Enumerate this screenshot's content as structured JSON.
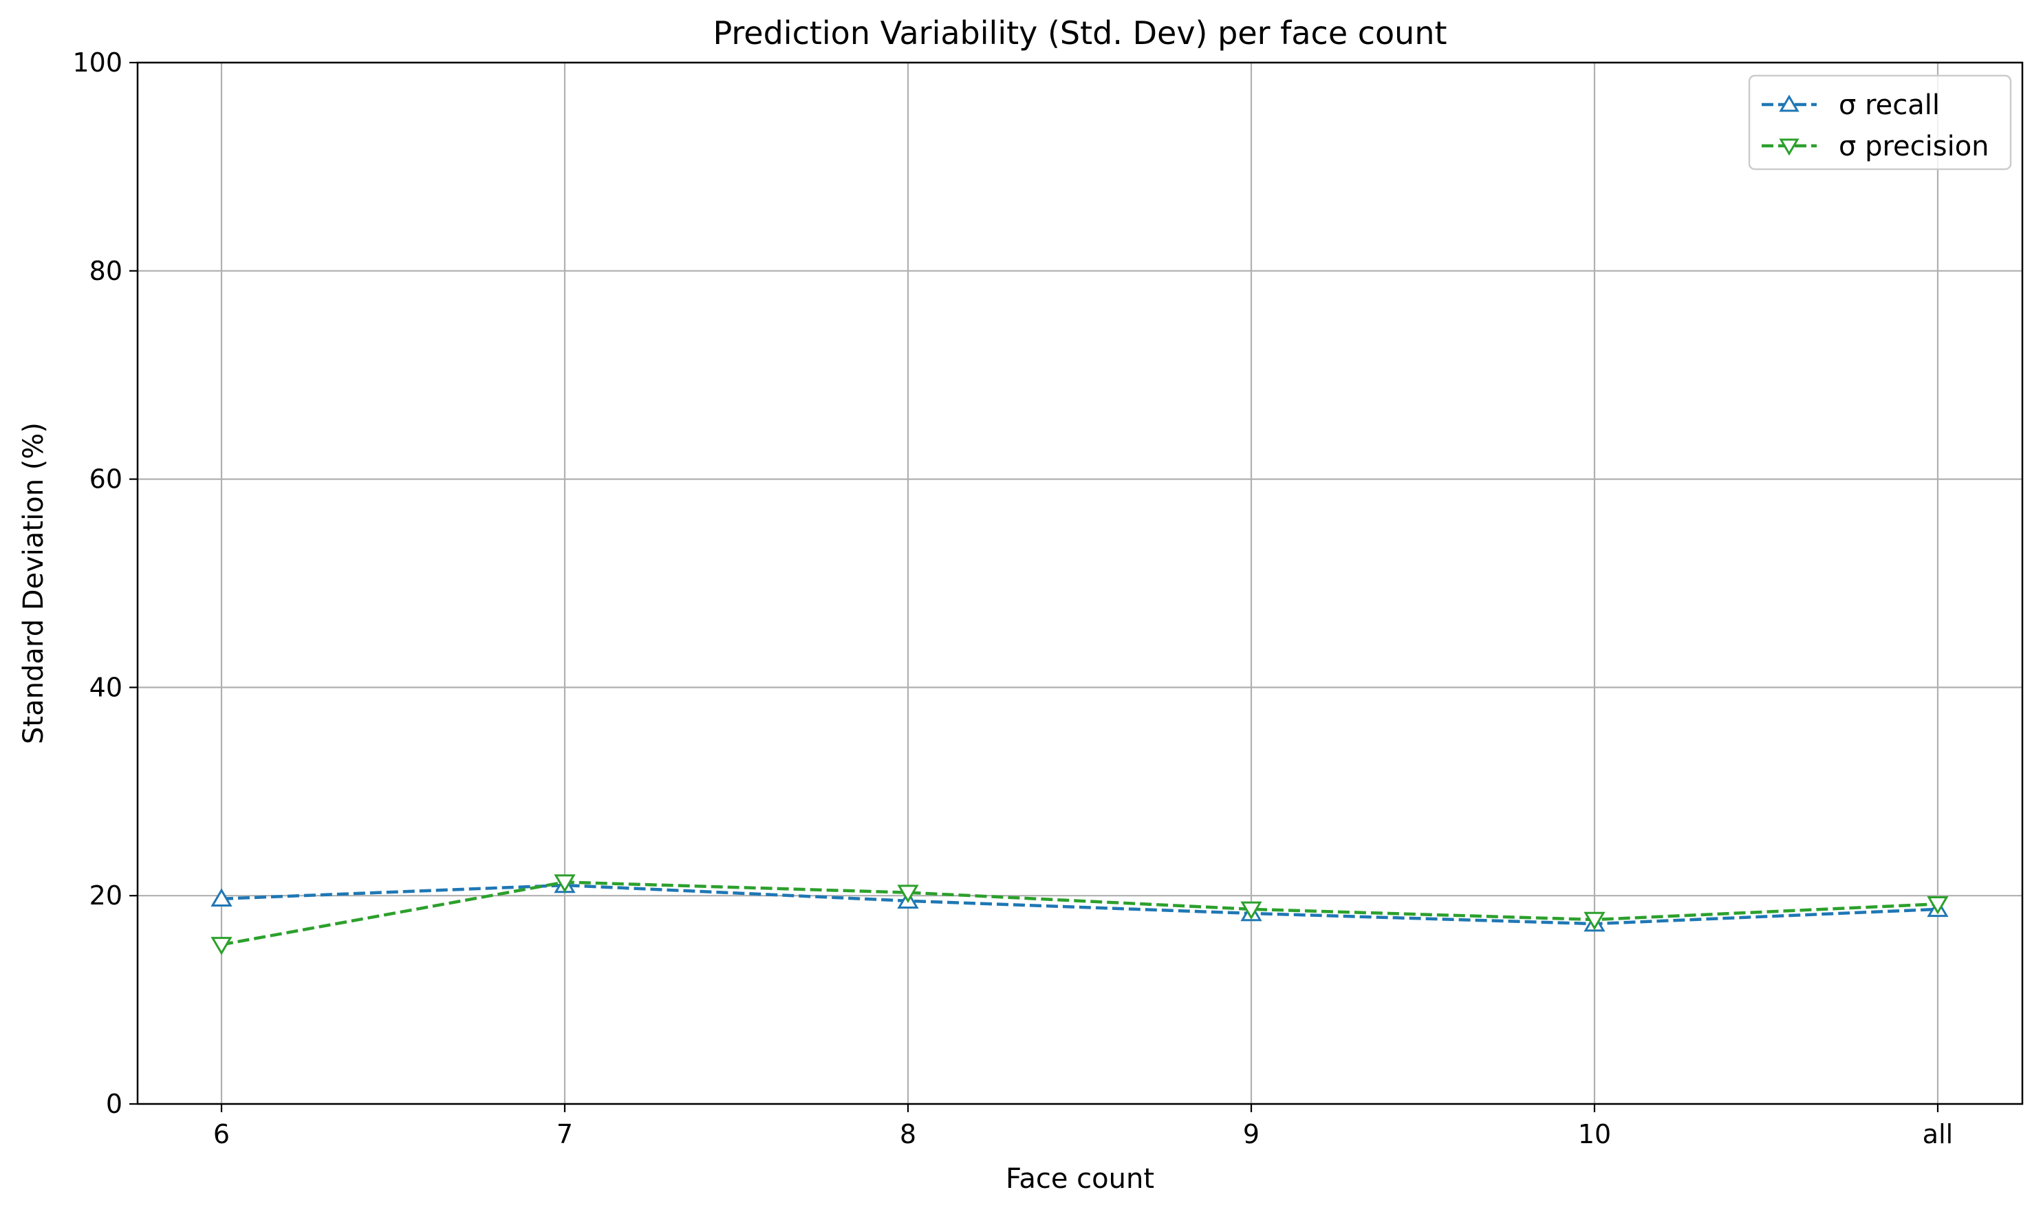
{
  "chart_data": {
    "type": "line",
    "title": "Prediction Variability (Std. Dev) per face count",
    "xlabel": "Face count",
    "ylabel": "Standard Deviation (%)",
    "categories": [
      "6",
      "7",
      "8",
      "9",
      "10",
      "all"
    ],
    "ylim": [
      0,
      100
    ],
    "yticks": [
      0,
      20,
      40,
      60,
      80,
      100
    ],
    "grid": true,
    "legend_position": "top-right",
    "series": [
      {
        "name": "σ recall",
        "values": [
          19.7,
          21.0,
          19.5,
          18.3,
          17.3,
          18.7
        ],
        "color": "#1f77b4",
        "marker": "triangle-up",
        "linestyle": "dashed"
      },
      {
        "name": "σ precision",
        "values": [
          15.3,
          21.3,
          20.3,
          18.7,
          17.7,
          19.2
        ],
        "color": "#2ca02c",
        "marker": "triangle-down",
        "linestyle": "dashed"
      }
    ]
  }
}
